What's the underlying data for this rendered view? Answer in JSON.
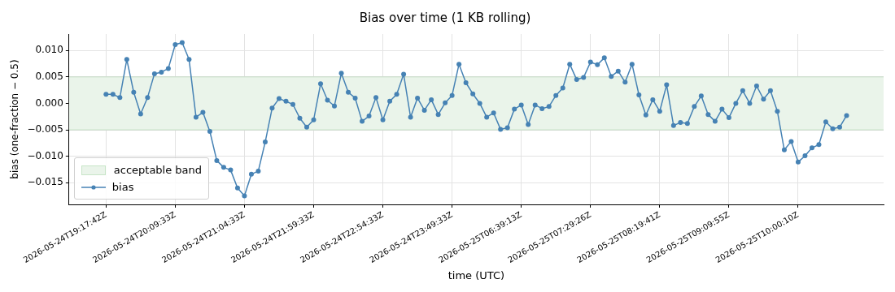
{
  "chart_data": {
    "type": "line",
    "title": "Bias over time (1 KB rolling)",
    "xlabel": "time (UTC)",
    "ylabel": "bias (one-fraction − 0.5)",
    "categories": [
      "2026-05-24T19:17:42Z",
      null,
      null,
      null,
      null,
      null,
      null,
      null,
      null,
      null,
      "2026-05-24T20:09:33Z",
      null,
      null,
      null,
      null,
      null,
      null,
      null,
      null,
      null,
      "2026-05-24T21:04:33Z",
      null,
      null,
      null,
      null,
      null,
      null,
      null,
      null,
      null,
      "2026-05-24T21:59:33Z",
      null,
      null,
      null,
      null,
      null,
      null,
      null,
      null,
      null,
      "2026-05-24T22:54:33Z",
      null,
      null,
      null,
      null,
      null,
      null,
      null,
      null,
      null,
      "2026-05-24T23:49:33Z",
      null,
      null,
      null,
      null,
      null,
      null,
      null,
      null,
      null,
      "2026-05-25T06:39:13Z",
      null,
      null,
      null,
      null,
      null,
      null,
      null,
      null,
      null,
      "2026-05-25T07:29:26Z",
      null,
      null,
      null,
      null,
      null,
      null,
      null,
      null,
      null,
      "2026-05-25T08:19:41Z",
      null,
      null,
      null,
      null,
      null,
      null,
      null,
      null,
      null,
      "2026-05-25T09:09:55Z",
      null,
      null,
      null,
      null,
      null,
      null,
      null,
      null,
      null,
      "2026-05-25T10:00:10Z",
      null,
      null,
      null,
      null,
      null,
      null,
      null
    ],
    "series": [
      {
        "name": "bias",
        "color": "#4682b4",
        "values": [
          0.0017,
          0.0017,
          0.0011,
          0.0083,
          0.0021,
          -0.002,
          0.0011,
          0.0056,
          0.0059,
          0.0066,
          0.0111,
          0.0115,
          0.0083,
          -0.0026,
          -0.0017,
          -0.0053,
          -0.0108,
          -0.0121,
          -0.0126,
          -0.016,
          -0.0175,
          -0.0134,
          -0.0128,
          -0.0073,
          -0.0009,
          0.0009,
          0.0004,
          -0.0002,
          -0.0028,
          -0.0045,
          -0.0031,
          0.0037,
          0.0006,
          -0.0005,
          0.0057,
          0.0021,
          0.001,
          -0.0034,
          -0.0024,
          0.0011,
          -0.0031,
          0.0004,
          0.0017,
          0.0055,
          -0.0026,
          0.001,
          -0.0013,
          0.0007,
          -0.0021,
          0.0001,
          0.0015,
          0.0074,
          0.0039,
          0.0018,
          0.0,
          -0.0026,
          -0.0018,
          -0.0049,
          -0.0046,
          -0.0011,
          -0.0003,
          -0.004,
          -0.0003,
          -0.001,
          -0.0006,
          0.0015,
          0.0029,
          0.0074,
          0.0045,
          0.0049,
          0.0078,
          0.0073,
          0.0086,
          0.0051,
          0.0061,
          0.004,
          0.0074,
          0.0016,
          -0.0022,
          0.0007,
          -0.0015,
          0.0035,
          -0.0042,
          -0.0036,
          -0.0038,
          -0.0006,
          0.0014,
          -0.0021,
          -0.0034,
          -0.0011,
          -0.0027,
          0.0,
          0.0024,
          0.0,
          0.0033,
          0.0008,
          0.0024,
          -0.0015,
          -0.0088,
          -0.0072,
          -0.0111,
          -0.0099,
          -0.0084,
          -0.0078,
          -0.0035,
          -0.0048,
          -0.0045,
          -0.0023
        ]
      }
    ],
    "bands": [
      {
        "axis": "y",
        "from": -0.005,
        "to": 0.005,
        "label": "acceptable band",
        "color": "#eaf4ea"
      }
    ],
    "ylim": [
      -0.0191,
      0.0131
    ],
    "yticks": [
      {
        "value": -0.015,
        "label": "−0.015"
      },
      {
        "value": -0.01,
        "label": "−0.010"
      },
      {
        "value": -0.005,
        "label": "−0.005"
      },
      {
        "value": 0,
        "label": "0.000"
      },
      {
        "value": 0.005,
        "label": "0.005"
      },
      {
        "value": 0.01,
        "label": "0.010"
      }
    ],
    "grid": true,
    "legend": "bottom left",
    "marker": "circle",
    "line_style": "solid"
  }
}
